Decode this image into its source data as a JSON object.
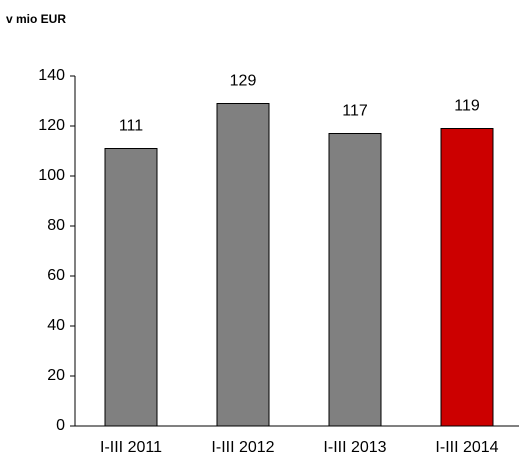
{
  "chart_data": {
    "type": "bar",
    "title": "v mio EUR",
    "categories": [
      "I-III 2011",
      "I-III 2012",
      "I-III 2013",
      "I-III 2014"
    ],
    "values": [
      111,
      129,
      117,
      119
    ],
    "colors": [
      "#808080",
      "#808080",
      "#808080",
      "#cc0000"
    ],
    "ylim": [
      0,
      140
    ],
    "yticks": [
      0,
      20,
      40,
      60,
      80,
      100,
      120,
      140
    ],
    "grid": false
  }
}
